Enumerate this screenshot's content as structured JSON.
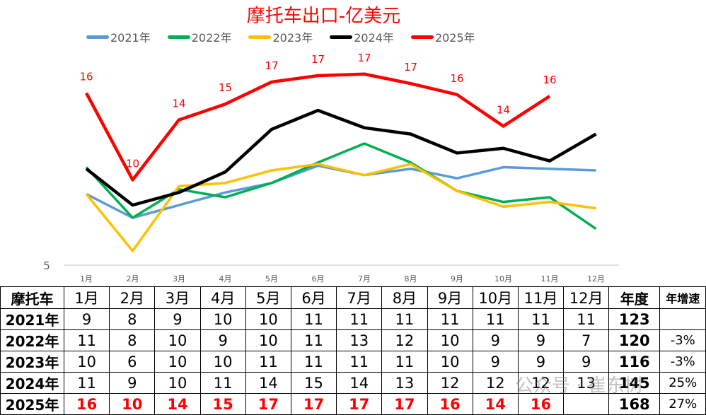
{
  "chart_data": {
    "type": "line",
    "title": "摩托车出口-亿美元",
    "categories": [
      "1月",
      "2月",
      "3月",
      "4月",
      "5月",
      "6月",
      "7月",
      "8月",
      "9月",
      "10月",
      "11月",
      "12月"
    ],
    "ylim": [
      5,
      20
    ],
    "y_ticks": [
      "5"
    ],
    "grid": false,
    "legend_position": "top",
    "series": [
      {
        "name": "2021年",
        "color": "#5b9bd5",
        "values": [
          9.5,
          8.0,
          8.8,
          9.6,
          10.2,
          11.3,
          10.7,
          11.1,
          10.5,
          11.2,
          11.1,
          11.0
        ]
      },
      {
        "name": "2022年",
        "color": "#00b050",
        "values": [
          11.2,
          8.0,
          9.8,
          9.3,
          10.2,
          11.5,
          12.7,
          11.5,
          9.7,
          9.0,
          9.3,
          7.3
        ]
      },
      {
        "name": "2023年",
        "color": "#ffc000",
        "values": [
          9.5,
          5.9,
          10.0,
          10.2,
          11.0,
          11.4,
          10.7,
          11.4,
          9.7,
          8.7,
          9.0,
          8.6
        ]
      },
      {
        "name": "2024年",
        "color": "#000000",
        "values": [
          11.1,
          8.8,
          9.6,
          10.9,
          13.6,
          14.8,
          13.7,
          13.3,
          12.1,
          12.4,
          11.6,
          13.3
        ]
      },
      {
        "name": "2025年",
        "color": "#ff0000",
        "values": [
          15.9,
          10.4,
          14.2,
          15.2,
          16.6,
          17.0,
          17.1,
          16.5,
          15.8,
          13.8,
          15.7,
          null
        ],
        "data_labels": [
          "16",
          "10",
          "14",
          "15",
          "17",
          "17",
          "17",
          "17",
          "16",
          "14",
          "16"
        ]
      }
    ]
  },
  "table": {
    "corner": "摩托车",
    "headers": [
      "1月",
      "2月",
      "3月",
      "4月",
      "5月",
      "6月",
      "7月",
      "8月",
      "9月",
      "10月",
      "11月",
      "12月",
      "年度",
      "年增速"
    ],
    "rows": [
      {
        "year": "2021年",
        "values": [
          "9",
          "8",
          "9",
          "10",
          "10",
          "11",
          "11",
          "11",
          "11",
          "11",
          "11",
          "11"
        ],
        "total": "123",
        "growth": ""
      },
      {
        "year": "2022年",
        "values": [
          "11",
          "8",
          "10",
          "9",
          "10",
          "11",
          "13",
          "12",
          "10",
          "9",
          "9",
          "7"
        ],
        "total": "120",
        "growth": "-3%"
      },
      {
        "year": "2023年",
        "values": [
          "10",
          "6",
          "10",
          "10",
          "11",
          "11",
          "11",
          "11",
          "10",
          "9",
          "9",
          "9"
        ],
        "total": "116",
        "growth": "-3%"
      },
      {
        "year": "2024年",
        "values": [
          "11",
          "9",
          "10",
          "11",
          "14",
          "15",
          "14",
          "13",
          "12",
          "12",
          "12",
          "13"
        ],
        "total": "145",
        "growth": "25%"
      },
      {
        "year": "2025年",
        "values": [
          "16",
          "10",
          "14",
          "15",
          "17",
          "17",
          "17",
          "17",
          "16",
          "14",
          "16",
          ""
        ],
        "total": "168",
        "growth": "27%"
      }
    ]
  },
  "watermark": "公众号 · 崔东树"
}
